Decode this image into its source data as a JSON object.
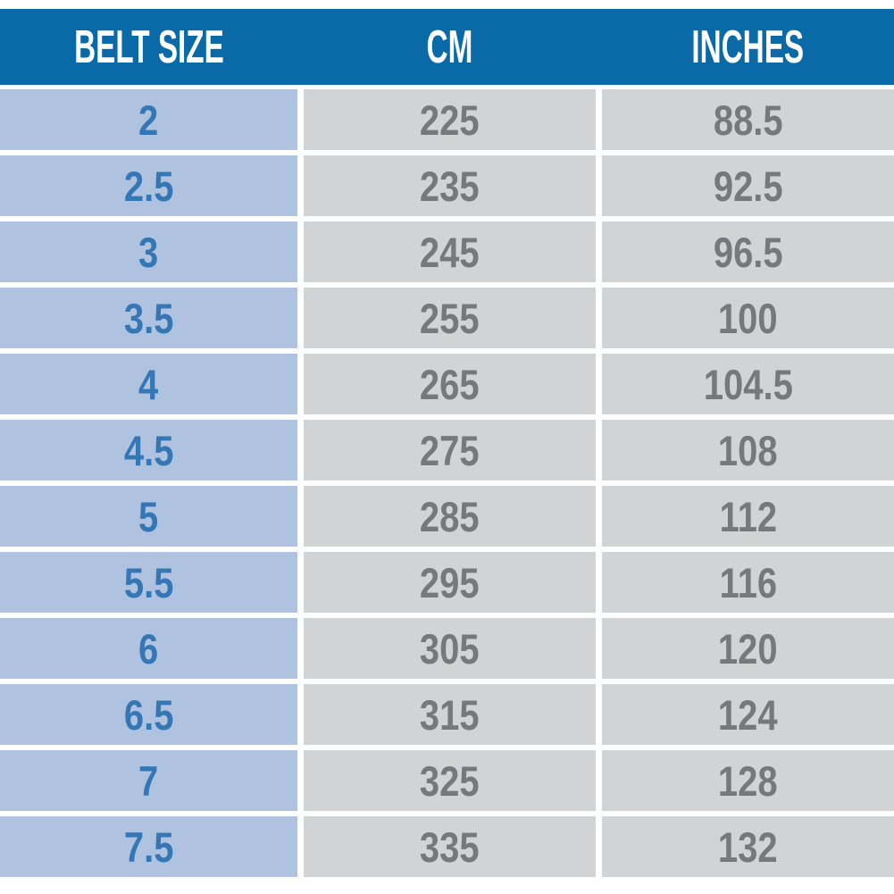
{
  "colors": {
    "header_bg": "#0a6aa8",
    "header_text": "#ffffff",
    "size_cell_bg": "#afc2df",
    "size_text": "#3577b5",
    "value_cell_bg": "#d2d3d5",
    "value_text": "#77787b",
    "page_bg": "#ffffff"
  },
  "chart_data": {
    "type": "table",
    "columns": [
      "BELT SIZE",
      "CM",
      "INCHES"
    ],
    "rows": [
      [
        "2",
        "225",
        "88.5"
      ],
      [
        "2.5",
        "235",
        "92.5"
      ],
      [
        "3",
        "245",
        "96.5"
      ],
      [
        "3.5",
        "255",
        "100"
      ],
      [
        "4",
        "265",
        "104.5"
      ],
      [
        "4.5",
        "275",
        "108"
      ],
      [
        "5",
        "285",
        "112"
      ],
      [
        "5.5",
        "295",
        "116"
      ],
      [
        "6",
        "305",
        "120"
      ],
      [
        "6.5",
        "315",
        "124"
      ],
      [
        "7",
        "325",
        "128"
      ],
      [
        "7.5",
        "335",
        "132"
      ]
    ]
  }
}
